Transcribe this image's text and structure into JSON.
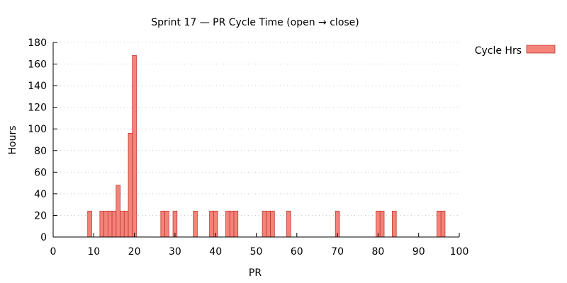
{
  "chart_data": {
    "type": "bar",
    "title": "Sprint 17 — PR Cycle Time (open → close)",
    "xlabel": "PR",
    "ylabel": "Hours",
    "xlim": [
      0,
      100
    ],
    "ylim": [
      0,
      180
    ],
    "xticks": [
      0,
      10,
      20,
      30,
      40,
      50,
      60,
      70,
      80,
      90,
      100
    ],
    "yticks": [
      0,
      20,
      40,
      60,
      80,
      100,
      120,
      140,
      160,
      180
    ],
    "grid": true,
    "legend_position": "top-right",
    "bar_color": "#f4837a",
    "series": [
      {
        "name": "Cycle Hrs",
        "x": [
          9,
          12,
          13,
          14,
          15,
          16,
          17,
          18,
          19,
          20,
          27,
          28,
          30,
          35,
          39,
          40,
          43,
          44,
          45,
          52,
          53,
          54,
          58,
          70,
          80,
          81,
          84,
          95,
          96
        ],
        "values": [
          24,
          24,
          24,
          24,
          24,
          48,
          24,
          24,
          96,
          168,
          24,
          24,
          24,
          24,
          24,
          24,
          24,
          24,
          24,
          24,
          24,
          24,
          24,
          24,
          24,
          24,
          24,
          24,
          24
        ]
      }
    ]
  }
}
